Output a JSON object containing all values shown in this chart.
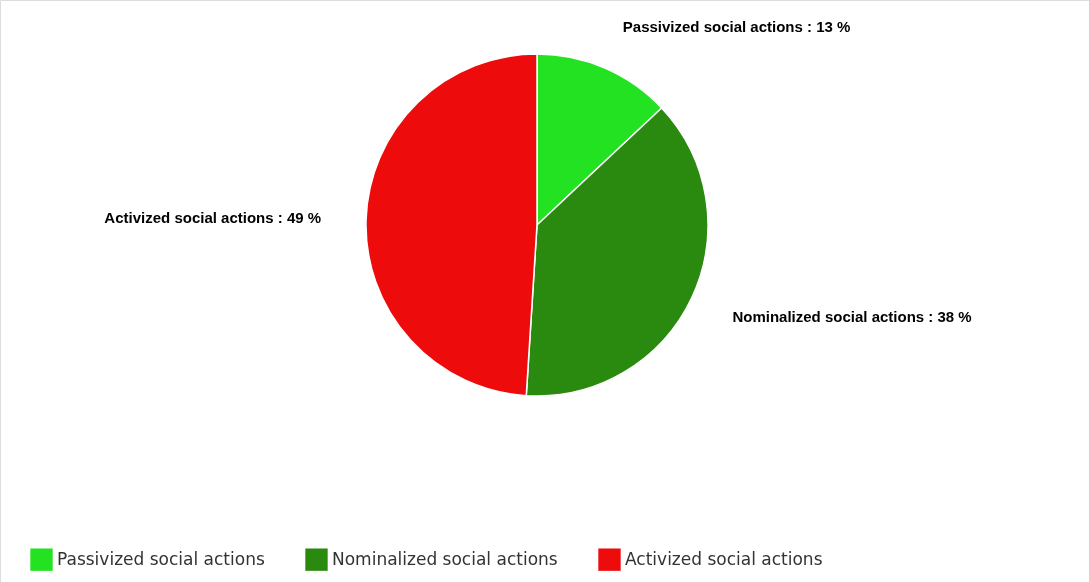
{
  "chart_data": {
    "type": "pie",
    "categories": [
      "Passivized social actions",
      "Nominalized social actions",
      "Activized social actions"
    ],
    "values": [
      13,
      38,
      49
    ],
    "colors": [
      "#22e222",
      "#2a8a10",
      "#ee0b0b"
    ],
    "value_labels": [
      ": 13 %",
      ": 38 %",
      ": 49 %"
    ],
    "legend": "bottom"
  }
}
